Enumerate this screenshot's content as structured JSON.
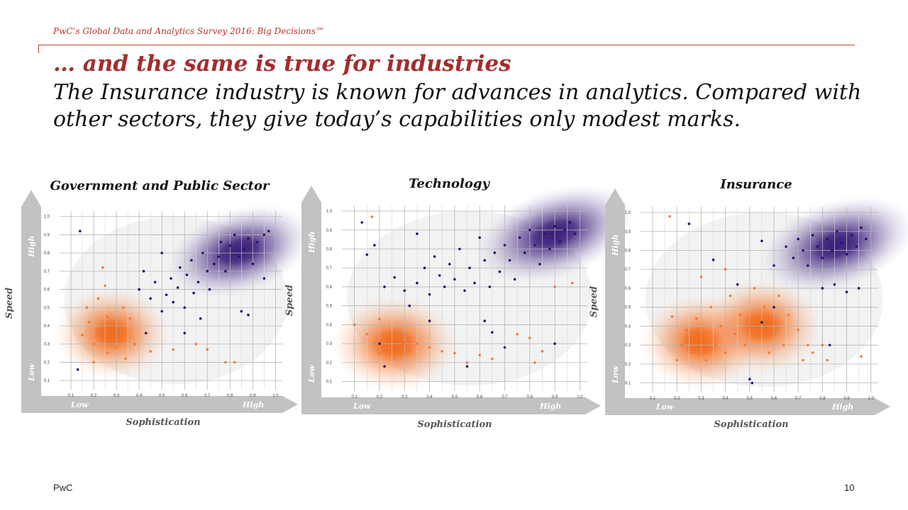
{
  "header": {
    "survey_title": "PwC’s Global Data and Analytics Survey 2016: Big Decisions™",
    "headline": "… and the same is true for industries",
    "subheadline": "The Insurance industry is known for advances in analytics. Compared with other sectors, they give today’s capabilities only modest marks."
  },
  "footer": {
    "brand": "PwC",
    "page_number": "10"
  },
  "colors": {
    "accent": "#a32d2d",
    "rule": "#c8442f",
    "orange": "#f26a1b",
    "purple": "#3b1f7a",
    "arrow": "#bfbfbf"
  },
  "chart_data": [
    {
      "type": "scatter",
      "title": "Government and Public Sector",
      "xlabel": "Sophistication",
      "ylabel": "Speed",
      "x_low": "Low",
      "x_high": "High",
      "y_low": "Low",
      "y_high": "High",
      "xlim": [
        0.05,
        1.03
      ],
      "ylim": [
        0.05,
        1.03
      ],
      "x_ticks": [
        "0.1",
        "0.2",
        "0.3",
        "0.4",
        "0.5",
        "0.6",
        "0.7",
        "0.8",
        "0.9",
        "1.0"
      ],
      "y_ticks": [
        "0.1",
        "0.2",
        "0.3",
        "0.4",
        "0.5",
        "0.6",
        "0.7",
        "0.8",
        "0.9",
        "1.0"
      ],
      "grid": true,
      "density_peaks": [
        {
          "group": "orange",
          "x": 0.28,
          "y": 0.36
        },
        {
          "group": "purple",
          "x": 0.84,
          "y": 0.81
        }
      ],
      "series": [
        {
          "color": "orange",
          "points": [
            [
              0.15,
              0.35
            ],
            [
              0.18,
              0.42
            ],
            [
              0.2,
              0.3
            ],
            [
              0.22,
              0.38
            ],
            [
              0.24,
              0.72
            ],
            [
              0.25,
              0.62
            ],
            [
              0.26,
              0.45
            ],
            [
              0.27,
              0.32
            ],
            [
              0.29,
              0.4
            ],
            [
              0.3,
              0.28
            ],
            [
              0.32,
              0.36
            ],
            [
              0.33,
              0.5
            ],
            [
              0.34,
              0.22
            ],
            [
              0.36,
              0.44
            ],
            [
              0.2,
              0.2
            ],
            [
              0.22,
              0.55
            ],
            [
              0.38,
              0.3
            ],
            [
              0.45,
              0.26
            ],
            [
              0.55,
              0.27
            ],
            [
              0.65,
              0.3
            ],
            [
              0.7,
              0.27
            ],
            [
              0.78,
              0.2
            ],
            [
              0.82,
              0.2
            ],
            [
              0.17,
              0.5
            ],
            [
              0.26,
              0.25
            ]
          ]
        },
        {
          "color": "purple",
          "points": [
            [
              0.13,
              0.16
            ],
            [
              0.14,
              0.92
            ],
            [
              0.4,
              0.6
            ],
            [
              0.42,
              0.7
            ],
            [
              0.45,
              0.55
            ],
            [
              0.47,
              0.64
            ],
            [
              0.5,
              0.48
            ],
            [
              0.52,
              0.57
            ],
            [
              0.54,
              0.66
            ],
            [
              0.55,
              0.53
            ],
            [
              0.57,
              0.61
            ],
            [
              0.58,
              0.72
            ],
            [
              0.6,
              0.5
            ],
            [
              0.61,
              0.68
            ],
            [
              0.63,
              0.76
            ],
            [
              0.64,
              0.58
            ],
            [
              0.66,
              0.64
            ],
            [
              0.68,
              0.8
            ],
            [
              0.7,
              0.7
            ],
            [
              0.71,
              0.6
            ],
            [
              0.73,
              0.74
            ],
            [
              0.75,
              0.78
            ],
            [
              0.76,
              0.86
            ],
            [
              0.78,
              0.7
            ],
            [
              0.8,
              0.84
            ],
            [
              0.82,
              0.9
            ],
            [
              0.84,
              0.78
            ],
            [
              0.86,
              0.82
            ],
            [
              0.88,
              0.88
            ],
            [
              0.9,
              0.74
            ],
            [
              0.92,
              0.86
            ],
            [
              0.95,
              0.9
            ],
            [
              0.97,
              0.92
            ],
            [
              0.85,
              0.48
            ],
            [
              0.88,
              0.46
            ],
            [
              0.6,
              0.36
            ],
            [
              0.95,
              0.66
            ],
            [
              0.43,
              0.36
            ],
            [
              0.5,
              0.8
            ],
            [
              0.67,
              0.44
            ]
          ]
        }
      ]
    },
    {
      "type": "scatter",
      "title": "Technology",
      "xlabel": "Sophistication",
      "ylabel": "Speed",
      "x_low": "Low",
      "x_high": "High",
      "y_low": "Low",
      "y_high": "High",
      "xlim": [
        0.05,
        1.03
      ],
      "ylim": [
        0.05,
        1.03
      ],
      "x_ticks": [
        "0.1",
        "0.2",
        "0.3",
        "0.4",
        "0.5",
        "0.6",
        "0.7",
        "0.8",
        "0.9",
        "1.0"
      ],
      "y_ticks": [
        "0.1",
        "0.2",
        "0.3",
        "0.4",
        "0.5",
        "0.6",
        "0.7",
        "0.8",
        "0.9",
        "1.0"
      ],
      "grid": true,
      "density_peaks": [
        {
          "group": "orange",
          "x": 0.26,
          "y": 0.3
        },
        {
          "group": "purple",
          "x": 0.9,
          "y": 0.88
        }
      ],
      "series": [
        {
          "color": "orange",
          "points": [
            [
              0.1,
              0.4
            ],
            [
              0.15,
              0.35
            ],
            [
              0.18,
              0.3
            ],
            [
              0.2,
              0.25
            ],
            [
              0.22,
              0.32
            ],
            [
              0.24,
              0.28
            ],
            [
              0.26,
              0.22
            ],
            [
              0.28,
              0.35
            ],
            [
              0.3,
              0.3
            ],
            [
              0.32,
              0.26
            ],
            [
              0.35,
              0.3
            ],
            [
              0.4,
              0.28
            ],
            [
              0.45,
              0.26
            ],
            [
              0.5,
              0.25
            ],
            [
              0.6,
              0.24
            ],
            [
              0.65,
              0.22
            ],
            [
              0.75,
              0.35
            ],
            [
              0.8,
              0.33
            ],
            [
              0.82,
              0.2
            ],
            [
              0.85,
              0.26
            ],
            [
              0.9,
              0.6
            ],
            [
              0.97,
              0.62
            ],
            [
              0.17,
              0.97
            ],
            [
              0.2,
              0.43
            ],
            [
              0.55,
              0.2
            ]
          ]
        },
        {
          "color": "purple",
          "points": [
            [
              0.13,
              0.94
            ],
            [
              0.15,
              0.77
            ],
            [
              0.18,
              0.82
            ],
            [
              0.2,
              0.3
            ],
            [
              0.22,
              0.6
            ],
            [
              0.26,
              0.65
            ],
            [
              0.3,
              0.58
            ],
            [
              0.32,
              0.5
            ],
            [
              0.35,
              0.62
            ],
            [
              0.38,
              0.7
            ],
            [
              0.4,
              0.56
            ],
            [
              0.42,
              0.76
            ],
            [
              0.44,
              0.66
            ],
            [
              0.46,
              0.6
            ],
            [
              0.48,
              0.72
            ],
            [
              0.5,
              0.64
            ],
            [
              0.52,
              0.8
            ],
            [
              0.54,
              0.58
            ],
            [
              0.56,
              0.7
            ],
            [
              0.58,
              0.62
            ],
            [
              0.6,
              0.86
            ],
            [
              0.62,
              0.74
            ],
            [
              0.64,
              0.6
            ],
            [
              0.66,
              0.78
            ],
            [
              0.68,
              0.68
            ],
            [
              0.7,
              0.82
            ],
            [
              0.72,
              0.74
            ],
            [
              0.74,
              0.64
            ],
            [
              0.76,
              0.86
            ],
            [
              0.78,
              0.78
            ],
            [
              0.8,
              0.9
            ],
            [
              0.82,
              0.82
            ],
            [
              0.84,
              0.72
            ],
            [
              0.86,
              0.88
            ],
            [
              0.88,
              0.8
            ],
            [
              0.9,
              0.92
            ],
            [
              0.92,
              0.84
            ],
            [
              0.94,
              0.9
            ],
            [
              0.96,
              0.94
            ],
            [
              0.98,
              0.88
            ],
            [
              0.62,
              0.42
            ],
            [
              0.65,
              0.36
            ],
            [
              0.7,
              0.28
            ],
            [
              0.4,
              0.42
            ],
            [
              0.55,
              0.18
            ],
            [
              0.9,
              0.3
            ],
            [
              0.35,
              0.88
            ],
            [
              0.22,
              0.18
            ]
          ]
        }
      ]
    },
    {
      "type": "scatter",
      "title": "Insurance",
      "xlabel": "Sophistication",
      "ylabel": "Speed",
      "x_low": "Low",
      "x_high": "High",
      "y_low": "Low",
      "y_high": "High",
      "xlim": [
        0.05,
        1.03
      ],
      "ylim": [
        0.05,
        1.03
      ],
      "x_ticks": [
        "0.1",
        "0.2",
        "0.3",
        "0.4",
        "0.5",
        "0.6",
        "0.7",
        "0.8",
        "0.9",
        "1.0"
      ],
      "y_ticks": [
        "0.1",
        "0.2",
        "0.3",
        "0.4",
        "0.5",
        "0.6",
        "0.7",
        "0.8",
        "0.9",
        "1.0"
      ],
      "grid": true,
      "density_peaks": [
        {
          "group": "orange",
          "x": 0.3,
          "y": 0.32
        },
        {
          "group": "orange",
          "x": 0.55,
          "y": 0.4
        },
        {
          "group": "purple",
          "x": 0.86,
          "y": 0.83
        }
      ],
      "series": [
        {
          "color": "orange",
          "points": [
            [
              0.17,
              0.98
            ],
            [
              0.2,
              0.22
            ],
            [
              0.22,
              0.3
            ],
            [
              0.24,
              0.38
            ],
            [
              0.26,
              0.26
            ],
            [
              0.28,
              0.44
            ],
            [
              0.3,
              0.34
            ],
            [
              0.32,
              0.22
            ],
            [
              0.34,
              0.5
            ],
            [
              0.36,
              0.3
            ],
            [
              0.38,
              0.4
            ],
            [
              0.4,
              0.26
            ],
            [
              0.42,
              0.56
            ],
            [
              0.44,
              0.36
            ],
            [
              0.46,
              0.46
            ],
            [
              0.48,
              0.3
            ],
            [
              0.5,
              0.4
            ],
            [
              0.52,
              0.6
            ],
            [
              0.54,
              0.34
            ],
            [
              0.56,
              0.5
            ],
            [
              0.58,
              0.26
            ],
            [
              0.6,
              0.42
            ],
            [
              0.62,
              0.56
            ],
            [
              0.64,
              0.3
            ],
            [
              0.66,
              0.46
            ],
            [
              0.7,
              0.38
            ],
            [
              0.72,
              0.22
            ],
            [
              0.74,
              0.3
            ],
            [
              0.76,
              0.26
            ],
            [
              0.8,
              0.3
            ],
            [
              0.82,
              0.22
            ],
            [
              0.96,
              0.24
            ],
            [
              0.3,
              0.66
            ],
            [
              0.4,
              0.7
            ],
            [
              0.18,
              0.45
            ]
          ]
        },
        {
          "color": "purple",
          "points": [
            [
              0.25,
              0.94
            ],
            [
              0.35,
              0.75
            ],
            [
              0.45,
              0.62
            ],
            [
              0.5,
              0.12
            ],
            [
              0.51,
              0.1
            ],
            [
              0.55,
              0.42
            ],
            [
              0.6,
              0.5
            ],
            [
              0.65,
              0.82
            ],
            [
              0.68,
              0.76
            ],
            [
              0.7,
              0.86
            ],
            [
              0.72,
              0.8
            ],
            [
              0.74,
              0.72
            ],
            [
              0.76,
              0.88
            ],
            [
              0.78,
              0.82
            ],
            [
              0.8,
              0.76
            ],
            [
              0.82,
              0.86
            ],
            [
              0.84,
              0.8
            ],
            [
              0.86,
              0.9
            ],
            [
              0.88,
              0.84
            ],
            [
              0.9,
              0.78
            ],
            [
              0.92,
              0.88
            ],
            [
              0.94,
              0.82
            ],
            [
              0.96,
              0.92
            ],
            [
              0.98,
              0.86
            ],
            [
              0.8,
              0.6
            ],
            [
              0.85,
              0.62
            ],
            [
              0.9,
              0.58
            ],
            [
              0.95,
              0.6
            ],
            [
              0.83,
              0.3
            ],
            [
              0.6,
              0.72
            ],
            [
              0.55,
              0.85
            ]
          ]
        }
      ]
    }
  ]
}
